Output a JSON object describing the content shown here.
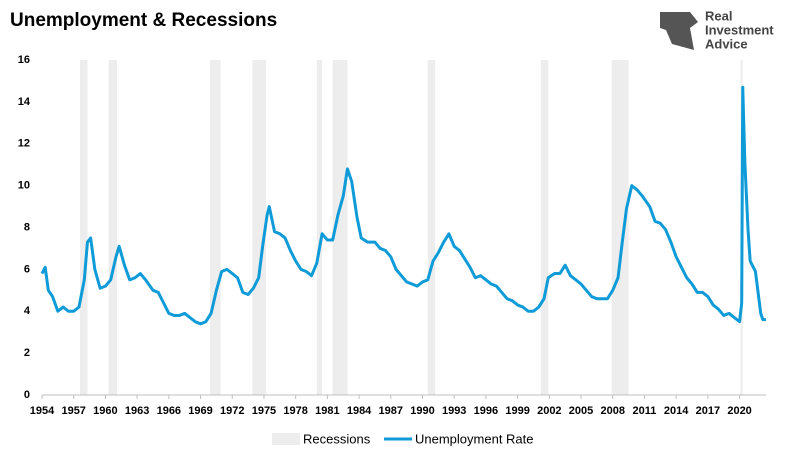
{
  "chart_data": {
    "type": "line",
    "title": "Unemployment & Recessions",
    "logo": [
      "Real",
      "Investment",
      "Advice"
    ],
    "x": [
      1954.0,
      1954.3,
      1954.6,
      1955.0,
      1955.5,
      1956.0,
      1956.5,
      1957.0,
      1957.5,
      1958.0,
      1958.3,
      1958.6,
      1959.0,
      1959.5,
      1960.0,
      1960.5,
      1961.0,
      1961.3,
      1961.8,
      1962.3,
      1962.8,
      1963.3,
      1963.8,
      1964.5,
      1965.0,
      1965.5,
      1966.0,
      1966.5,
      1967.0,
      1967.5,
      1968.0,
      1968.5,
      1969.0,
      1969.5,
      1970.0,
      1970.5,
      1971.0,
      1971.5,
      1972.0,
      1972.5,
      1973.0,
      1973.5,
      1974.0,
      1974.5,
      1974.9,
      1975.3,
      1975.5,
      1976.0,
      1976.5,
      1977.0,
      1977.5,
      1978.0,
      1978.5,
      1979.0,
      1979.5,
      1980.0,
      1980.5,
      1981.0,
      1981.5,
      1982.0,
      1982.5,
      1982.9,
      1983.3,
      1983.8,
      1984.2,
      1984.8,
      1985.5,
      1986.0,
      1986.5,
      1987.0,
      1987.5,
      1988.0,
      1988.5,
      1989.0,
      1989.5,
      1990.0,
      1990.5,
      1991.0,
      1991.5,
      1992.0,
      1992.5,
      1993.0,
      1993.5,
      1994.0,
      1994.5,
      1995.0,
      1995.5,
      1996.0,
      1996.5,
      1997.0,
      1997.5,
      1998.0,
      1998.5,
      1999.0,
      1999.5,
      2000.0,
      2000.5,
      2001.0,
      2001.5,
      2001.9,
      2002.5,
      2003.0,
      2003.5,
      2004.0,
      2004.5,
      2005.0,
      2005.5,
      2006.0,
      2006.5,
      2007.0,
      2007.5,
      2008.0,
      2008.5,
      2008.9,
      2009.3,
      2009.8,
      2010.3,
      2010.8,
      2011.5,
      2012.0,
      2012.5,
      2013.0,
      2013.5,
      2014.0,
      2014.5,
      2015.0,
      2015.5,
      2016.0,
      2016.5,
      2017.0,
      2017.5,
      2018.0,
      2018.5,
      2019.0,
      2019.5,
      2020.0,
      2020.2,
      2020.3,
      2020.5,
      2020.8,
      2021.0,
      2021.5,
      2022.0,
      2022.2,
      2022.5
    ],
    "series": [
      {
        "name": "Unemployment Rate",
        "color": "#0f9bd7",
        "values": [
          5.8,
          6.1,
          5.0,
          4.7,
          4.0,
          4.2,
          4.0,
          4.0,
          4.2,
          5.5,
          7.3,
          7.5,
          6.0,
          5.1,
          5.2,
          5.5,
          6.6,
          7.1,
          6.2,
          5.5,
          5.6,
          5.8,
          5.5,
          5.0,
          4.9,
          4.4,
          3.9,
          3.8,
          3.8,
          3.9,
          3.7,
          3.5,
          3.4,
          3.5,
          3.9,
          5.0,
          5.9,
          6.0,
          5.8,
          5.6,
          4.9,
          4.8,
          5.1,
          5.6,
          7.2,
          8.6,
          9.0,
          7.8,
          7.7,
          7.5,
          6.9,
          6.4,
          6.0,
          5.9,
          5.7,
          6.3,
          7.7,
          7.4,
          7.4,
          8.6,
          9.5,
          10.8,
          10.2,
          8.5,
          7.5,
          7.3,
          7.3,
          7.0,
          6.9,
          6.6,
          6.0,
          5.7,
          5.4,
          5.3,
          5.2,
          5.4,
          5.5,
          6.4,
          6.8,
          7.3,
          7.7,
          7.1,
          6.9,
          6.5,
          6.1,
          5.6,
          5.7,
          5.5,
          5.3,
          5.2,
          4.9,
          4.6,
          4.5,
          4.3,
          4.2,
          4.0,
          4.0,
          4.2,
          4.6,
          5.6,
          5.8,
          5.8,
          6.2,
          5.7,
          5.5,
          5.3,
          5.0,
          4.7,
          4.6,
          4.6,
          4.6,
          5.0,
          5.6,
          7.3,
          8.9,
          10.0,
          9.8,
          9.5,
          9.0,
          8.3,
          8.2,
          7.9,
          7.3,
          6.6,
          6.1,
          5.6,
          5.3,
          4.9,
          4.9,
          4.7,
          4.3,
          4.1,
          3.8,
          3.9,
          3.7,
          3.5,
          4.4,
          14.7,
          11.1,
          7.9,
          6.4,
          5.9,
          3.9,
          3.6,
          3.6
        ]
      }
    ],
    "recessions": {
      "name": "Recessions",
      "color": "#ededed",
      "ranges": [
        [
          1957.6,
          1958.3
        ],
        [
          1960.3,
          1961.1
        ],
        [
          1969.9,
          1970.9
        ],
        [
          1973.9,
          1975.2
        ],
        [
          1980.0,
          1980.5
        ],
        [
          1981.5,
          1982.9
        ],
        [
          1990.5,
          1991.2
        ],
        [
          2001.2,
          2001.9
        ],
        [
          2007.9,
          2009.5
        ],
        [
          2020.1,
          2020.3
        ]
      ]
    },
    "xlim": [
      1954,
      2022.5
    ],
    "xticks": [
      1954,
      1957,
      1960,
      1963,
      1966,
      1969,
      1972,
      1975,
      1978,
      1981,
      1984,
      1987,
      1990,
      1993,
      1996,
      1999,
      2002,
      2005,
      2008,
      2011,
      2014,
      2017,
      2020
    ],
    "ylim": [
      0,
      16
    ],
    "yticks": [
      0,
      2,
      4,
      6,
      8,
      10,
      12,
      14,
      16
    ]
  }
}
